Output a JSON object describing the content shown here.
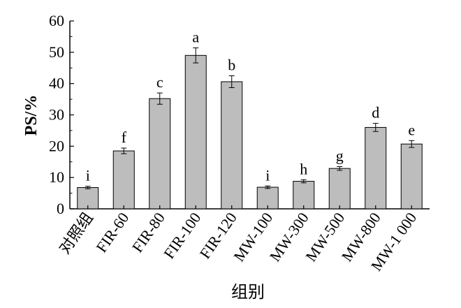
{
  "chart_data": {
    "type": "bar",
    "title": "",
    "xlabel": "组别",
    "ylabel": "PS/%",
    "ylim": [
      0,
      60
    ],
    "yticks": [
      0,
      10,
      20,
      30,
      40,
      50,
      60
    ],
    "grid": false,
    "categories": [
      "对照组",
      "FIR-60",
      "FIR-80",
      "FIR-100",
      "FIR-120",
      "MW-100",
      "MW-300",
      "MW-500",
      "MW-800",
      "MW-1 000"
    ],
    "values": [
      6.8,
      18.5,
      35.2,
      49.0,
      40.6,
      6.9,
      8.8,
      12.9,
      26.0,
      20.7
    ],
    "errors": [
      0.4,
      0.9,
      1.8,
      2.4,
      1.9,
      0.4,
      0.5,
      0.6,
      1.3,
      1.1
    ],
    "significance": [
      "i",
      "f",
      "c",
      "a",
      "b",
      "i",
      "h",
      "g",
      "d",
      "e"
    ],
    "bar_color": "#bdbdbd",
    "bar_edge_color": "#000000"
  }
}
